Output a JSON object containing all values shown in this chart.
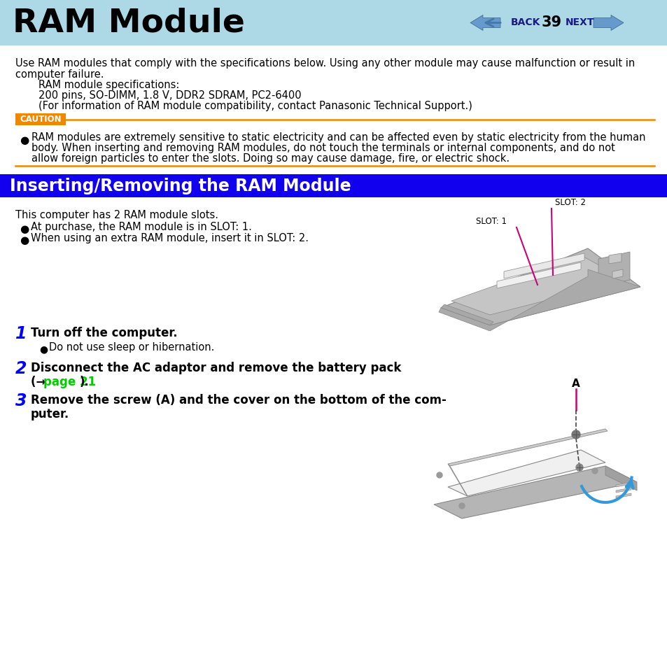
{
  "bg_color": "#ffffff",
  "header_bg": "#add8e6",
  "header_title": "RAM Module",
  "header_title_size": 34,
  "page_num": "39",
  "nav_color": "#4477aa",
  "section2_bg": "#1100ee",
  "section2_text": "Inserting/Removing the RAM Module",
  "section2_text_color": "#ffffff",
  "section2_fontsize": 17,
  "caution_bg": "#ee8800",
  "caution_text": "CAUTION",
  "caution_text_color": "#ffffff",
  "orange_color": "#ee8800",
  "body_fontsize": 10.5,
  "body_color": "#000000",
  "step_color": "#0000ff",
  "link_color": "#00cc00",
  "slot_line_color": "#cc0077",
  "gray1": "#c8c8c8",
  "gray2": "#b0b0b0",
  "gray3": "#d8d8d8",
  "gray4": "#a8a8a8",
  "blue_arrow": "#3399dd"
}
